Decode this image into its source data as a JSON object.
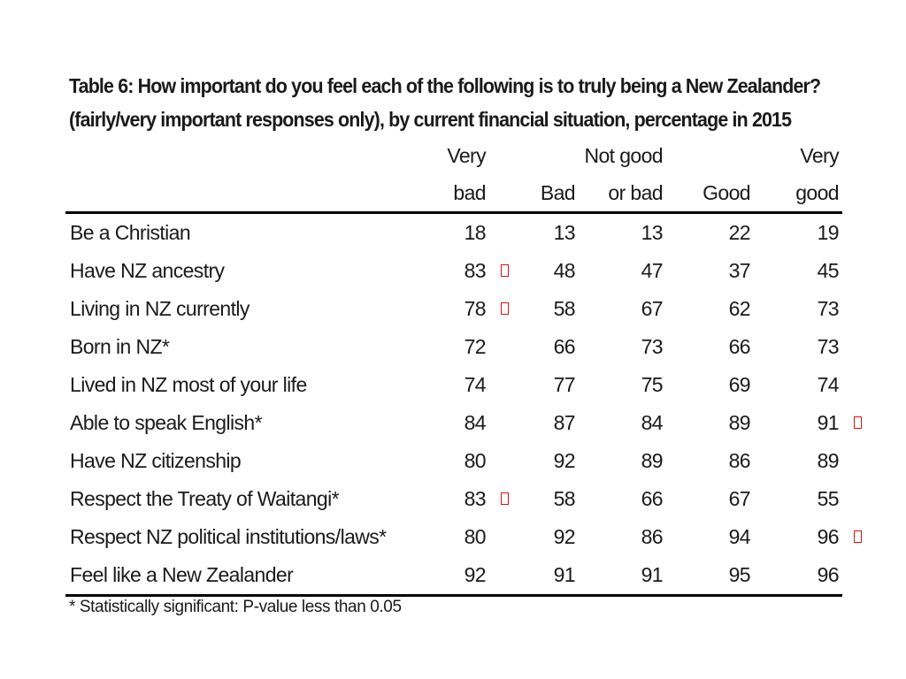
{
  "title": {
    "line1": "Table 6: How important do you feel each of the following is to truly being a New Zealander?",
    "line2": "(fairly/very important responses only), by current financial situation, percentage in 2015"
  },
  "chart_data": {
    "type": "table",
    "header_top": [
      "",
      "Very",
      "",
      "Not good",
      "",
      "Very"
    ],
    "header_bottom": [
      "",
      "bad",
      "Bad",
      "or bad",
      "Good",
      "good"
    ],
    "columns": [
      "Very bad",
      "Bad",
      "Not good or bad",
      "Good",
      "Very good"
    ],
    "rows": [
      {
        "label": "Be a Christian",
        "values": [
          "18",
          "13",
          "13",
          "22",
          "19"
        ],
        "marks": [
          false,
          false,
          false,
          false,
          false
        ]
      },
      {
        "label": "Have NZ ancestry",
        "values": [
          "83",
          "48",
          "47",
          "37",
          "45"
        ],
        "marks": [
          true,
          false,
          false,
          false,
          false
        ]
      },
      {
        "label": "Living in NZ currently",
        "values": [
          "78",
          "58",
          "67",
          "62",
          "73"
        ],
        "marks": [
          true,
          false,
          false,
          false,
          false
        ]
      },
      {
        "label": "Born in NZ*",
        "values": [
          "72",
          "66",
          "73",
          "66",
          "73"
        ],
        "marks": [
          false,
          false,
          false,
          false,
          false
        ]
      },
      {
        "label": "Lived in NZ most of your life",
        "values": [
          "74",
          "77",
          "75",
          "69",
          "74"
        ],
        "marks": [
          false,
          false,
          false,
          false,
          false
        ]
      },
      {
        "label": "Able to speak English*",
        "values": [
          "84",
          "87",
          "84",
          "89",
          "91"
        ],
        "marks": [
          false,
          false,
          false,
          false,
          true
        ]
      },
      {
        "label": "Have NZ citizenship",
        "values": [
          "80",
          "92",
          "89",
          "86",
          "89"
        ],
        "marks": [
          false,
          false,
          false,
          false,
          false
        ]
      },
      {
        "label": "Respect the Treaty of Waitangi*",
        "values": [
          "83",
          "58",
          "66",
          "67",
          "55"
        ],
        "marks": [
          true,
          false,
          false,
          false,
          false
        ]
      },
      {
        "label": "Respect NZ political institutions/laws*",
        "values": [
          "80",
          "92",
          "86",
          "94",
          "96"
        ],
        "marks": [
          false,
          false,
          false,
          false,
          true
        ]
      },
      {
        "label": "Feel like a New Zealander",
        "values": [
          "92",
          "91",
          "91",
          "95",
          "96"
        ],
        "marks": [
          false,
          false,
          false,
          false,
          false
        ]
      }
    ],
    "mark_color": "#e01010"
  },
  "footnote": "* Statistically significant: P-value less than 0.05"
}
